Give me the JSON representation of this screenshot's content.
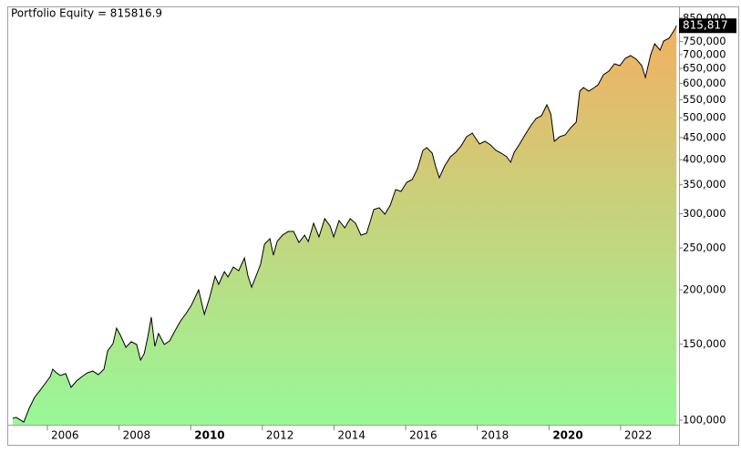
{
  "chart_data": {
    "type": "area",
    "title": "Portfolio Equity = 815816.9",
    "ylog": true,
    "line_color": "#000000",
    "fill_gradient": [
      "#98f898",
      "#f5ad60"
    ],
    "last_value_label": "815,817",
    "label_bg": "#000000",
    "xlim": [
      2004.88,
      2023.63
    ],
    "xticks": [
      2006,
      2008,
      2010,
      2012,
      2014,
      2016,
      2018,
      2020,
      2022
    ],
    "bold_xticks": [
      2010,
      2020
    ],
    "ylim": [
      97600,
      900000
    ],
    "yticks": [
      {
        "value": 100000,
        "label": "100,000"
      },
      {
        "value": 150000,
        "label": "150,000"
      },
      {
        "value": 200000,
        "label": "200,000"
      },
      {
        "value": 250000,
        "label": "250,000"
      },
      {
        "value": 300000,
        "label": "300,000"
      },
      {
        "value": 350000,
        "label": "350,000"
      },
      {
        "value": 400000,
        "label": "400,000"
      },
      {
        "value": 450000,
        "label": "450,000"
      },
      {
        "value": 500000,
        "label": "500,000"
      },
      {
        "value": 550000,
        "label": "550,000"
      },
      {
        "value": 600000,
        "label": "600,000"
      },
      {
        "value": 650000,
        "label": "650,000"
      },
      {
        "value": 700000,
        "label": "700,000"
      },
      {
        "value": 750000,
        "label": "750,000"
      },
      {
        "value": 850000,
        "label": "850,000"
      }
    ],
    "x": [
      2005.03,
      2005.13,
      2005.34,
      2005.49,
      2005.64,
      2005.8,
      2005.95,
      2006.08,
      2006.15,
      2006.25,
      2006.36,
      2006.51,
      2006.66,
      2006.81,
      2006.97,
      2007.12,
      2007.27,
      2007.42,
      2007.58,
      2007.68,
      2007.83,
      2007.93,
      2008.04,
      2008.19,
      2008.34,
      2008.49,
      2008.6,
      2008.7,
      2008.8,
      2008.9,
      2009.0,
      2009.1,
      2009.26,
      2009.41,
      2009.56,
      2009.72,
      2009.87,
      2010.02,
      2010.22,
      2010.38,
      2010.53,
      2010.68,
      2010.78,
      2010.94,
      2011.04,
      2011.19,
      2011.34,
      2011.5,
      2011.6,
      2011.7,
      2011.85,
      2011.95,
      2012.06,
      2012.21,
      2012.31,
      2012.41,
      2012.56,
      2012.72,
      2012.87,
      2013.02,
      2013.18,
      2013.28,
      2013.43,
      2013.58,
      2013.74,
      2013.89,
      2013.99,
      2014.14,
      2014.3,
      2014.45,
      2014.6,
      2014.75,
      2014.91,
      2015.01,
      2015.11,
      2015.26,
      2015.42,
      2015.57,
      2015.72,
      2015.87,
      2016.03,
      2016.18,
      2016.33,
      2016.48,
      2016.59,
      2016.74,
      2016.84,
      2016.94,
      2017.09,
      2017.25,
      2017.4,
      2017.55,
      2017.7,
      2017.86,
      2017.96,
      2018.06,
      2018.21,
      2018.37,
      2018.52,
      2018.67,
      2018.82,
      2018.93,
      2019.03,
      2019.18,
      2019.33,
      2019.49,
      2019.64,
      2019.79,
      2019.94,
      2020.05,
      2020.15,
      2020.3,
      2020.45,
      2020.61,
      2020.76,
      2020.86,
      2020.96,
      2021.11,
      2021.27,
      2021.37,
      2021.52,
      2021.67,
      2021.83,
      2021.98,
      2022.13,
      2022.28,
      2022.44,
      2022.59,
      2022.69,
      2022.84,
      2022.95,
      2023.1,
      2023.2,
      2023.35,
      2023.51,
      2023.56
    ],
    "values": [
      101000,
      101500,
      99000,
      106500,
      112900,
      117400,
      122000,
      126200,
      131200,
      128700,
      126800,
      128100,
      119100,
      123200,
      126200,
      128700,
      129900,
      127400,
      131200,
      144600,
      150300,
      163200,
      157000,
      147400,
      151800,
      149600,
      137700,
      142500,
      155500,
      173000,
      148100,
      158600,
      149600,
      152500,
      160900,
      169700,
      176400,
      184300,
      200100,
      175600,
      192500,
      215200,
      206000,
      220500,
      214200,
      225900,
      221500,
      237100,
      215200,
      203000,
      218300,
      229200,
      255100,
      262600,
      240600,
      258800,
      267700,
      273000,
      273000,
      257500,
      267700,
      258800,
      285200,
      265200,
      292200,
      281000,
      265200,
      289300,
      278300,
      292200,
      285200,
      267700,
      270400,
      287900,
      306700,
      309700,
      299300,
      314200,
      341200,
      337900,
      354700,
      359900,
      381400,
      420300,
      426500,
      414200,
      385100,
      363400,
      387000,
      406200,
      416300,
      430600,
      452000,
      460900,
      447700,
      434800,
      441200,
      432700,
      420300,
      414200,
      406200,
      394600,
      416300,
      434800,
      456400,
      479100,
      498100,
      505400,
      535700,
      510300,
      441200,
      452000,
      456400,
      474500,
      488500,
      576000,
      587300,
      576000,
      587300,
      595900,
      628500,
      640900,
      666200,
      659800,
      685900,
      695900,
      682600,
      659800,
      619500,
      699300,
      741300,
      716600,
      752200,
      763200,
      800000,
      815817
    ]
  }
}
